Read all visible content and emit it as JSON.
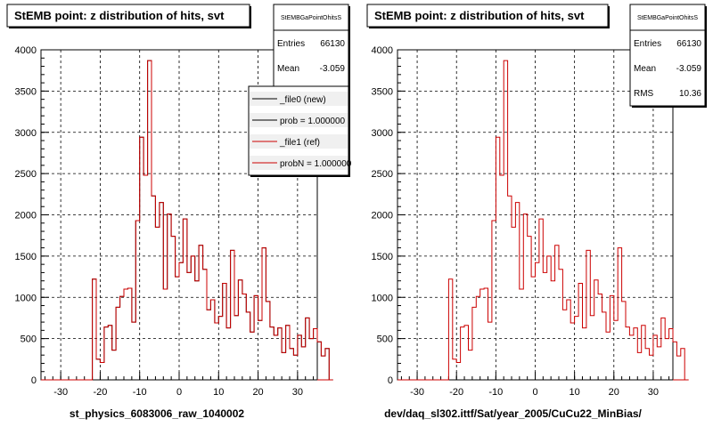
{
  "footer_text": "",
  "panels": [
    {
      "title": "StEMB point: z distribution of hits, svt",
      "xlabel": "st_physics_6083006_raw_1040002",
      "stats": {
        "name": "StEMBGaPointOhitsS",
        "rows": [
          {
            "label": "Entries",
            "value": "66130"
          },
          {
            "label": "Mean",
            "value": "-3.059"
          }
        ]
      },
      "legend": {
        "entries": [
          {
            "label": "_file0 (new)",
            "color": "#000000"
          },
          {
            "label": "prob = 1.000000",
            "color": "#000000"
          },
          {
            "label": "_file1 (ref)",
            "color": "#cc0000"
          },
          {
            "label": "probN = 1.000000",
            "color": "#cc0000"
          }
        ]
      }
    },
    {
      "title": "StEMB point: z distribution of hits, svt",
      "xlabel": "dev/daq_sl302.ittf/Sat/year_2005/CuCu22_MinBias/",
      "stats": {
        "name": "StEMBGaPointOhitsS",
        "rows": [
          {
            "label": "Entries",
            "value": "66130"
          },
          {
            "label": "Mean",
            "value": "-3.059"
          },
          {
            "label": "RMS",
            "value": "10.36"
          }
        ]
      },
      "legend": null
    }
  ],
  "chart_data": [
    {
      "type": "bar",
      "title": "StEMB point: z distribution of hits, svt",
      "xlabel": "st_physics_6083006_raw_1040002",
      "ylabel": "",
      "xlim": [
        -35,
        35
      ],
      "ylim": [
        0,
        4000
      ],
      "xticks": [
        -30,
        -20,
        -10,
        0,
        10,
        20,
        30
      ],
      "yticks": [
        0,
        500,
        1000,
        1500,
        2000,
        2500,
        3000,
        3500,
        4000
      ],
      "grid": true,
      "legend_position": "top-right",
      "bin_start": -22,
      "bin_width": 1,
      "series": [
        {
          "name": "_file0 (new)",
          "color": "#000000",
          "values": [
            1220,
            250,
            210,
            640,
            660,
            360,
            880,
            1010,
            1100,
            1110,
            700,
            1930,
            2940,
            2480,
            3870,
            2230,
            1850,
            2150,
            1100,
            2010,
            1740,
            1250,
            1420,
            1950,
            1300,
            1500,
            1200,
            1630,
            1340,
            850,
            970,
            690,
            770,
            1170,
            630,
            1570,
            780,
            1210,
            1040,
            820,
            580,
            1020,
            720,
            1600,
            950,
            640,
            540,
            630,
            330,
            660,
            380,
            300,
            540,
            400,
            750,
            500,
            620,
            460,
            290,
            380,
            0
          ]
        },
        {
          "name": "_file1 (ref)",
          "color": "#cc0000",
          "values": [
            1220,
            250,
            210,
            640,
            660,
            360,
            880,
            1010,
            1100,
            1110,
            700,
            1930,
            2940,
            2480,
            3870,
            2230,
            1850,
            2150,
            1100,
            2010,
            1740,
            1250,
            1420,
            1950,
            1300,
            1500,
            1200,
            1630,
            1340,
            850,
            970,
            690,
            770,
            1170,
            630,
            1570,
            780,
            1210,
            1040,
            820,
            580,
            1020,
            720,
            1600,
            950,
            640,
            540,
            630,
            330,
            660,
            380,
            300,
            540,
            400,
            750,
            500,
            620,
            460,
            290,
            380,
            0
          ]
        }
      ]
    },
    {
      "type": "bar",
      "title": "StEMB point: z distribution of hits, svt",
      "xlabel": "dev/daq_sl302.ittf/Sat/year_2005/CuCu22_MinBias/",
      "ylabel": "",
      "xlim": [
        -35,
        35
      ],
      "ylim": [
        0,
        4000
      ],
      "xticks": [
        -30,
        -20,
        -10,
        0,
        10,
        20,
        30
      ],
      "yticks": [
        0,
        500,
        1000,
        1500,
        2000,
        2500,
        3000,
        3500,
        4000
      ],
      "grid": true,
      "bin_start": -22,
      "bin_width": 1,
      "series": [
        {
          "name": "",
          "color": "#cc0000",
          "values": [
            1220,
            250,
            210,
            640,
            660,
            360,
            880,
            1010,
            1100,
            1110,
            700,
            1930,
            2940,
            2480,
            3870,
            2230,
            1850,
            2150,
            1100,
            2010,
            1740,
            1250,
            1420,
            1950,
            1300,
            1500,
            1200,
            1630,
            1340,
            850,
            970,
            690,
            770,
            1170,
            630,
            1570,
            780,
            1210,
            1040,
            820,
            580,
            1020,
            720,
            1600,
            950,
            640,
            540,
            630,
            330,
            660,
            380,
            300,
            540,
            400,
            750,
            500,
            620,
            460,
            290,
            380,
            0
          ]
        }
      ]
    }
  ]
}
